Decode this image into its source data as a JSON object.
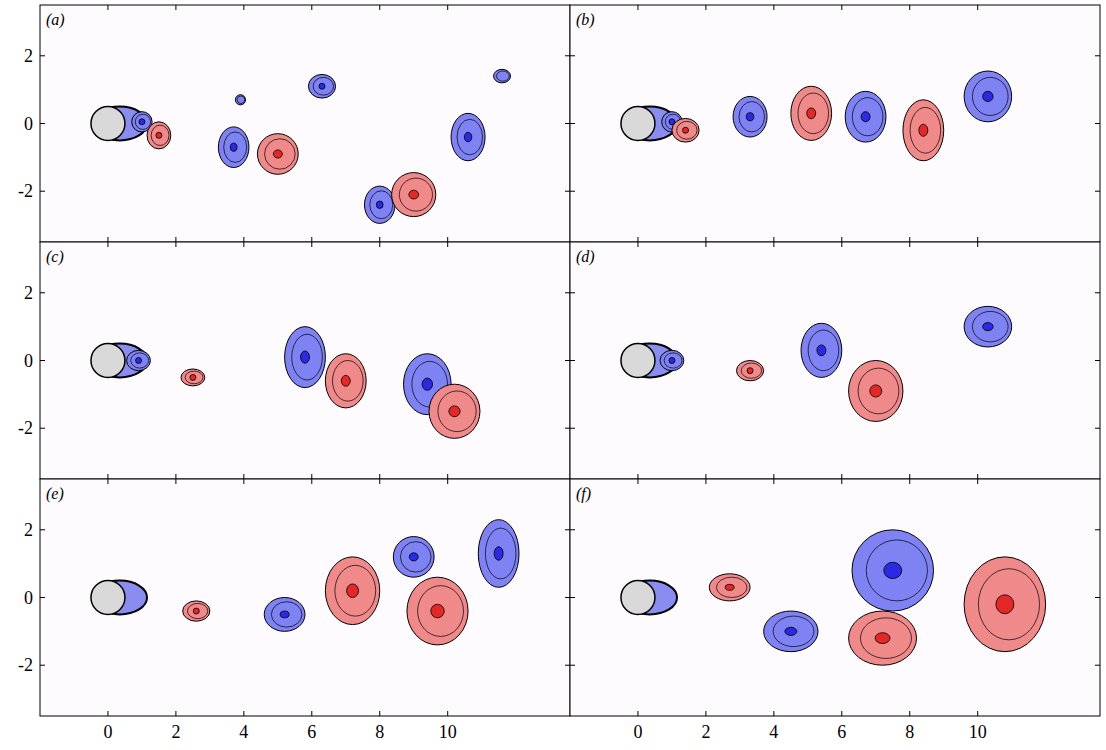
{
  "chart_data": [
    {
      "type": "contour",
      "title": "(a)",
      "xlim": [
        -2,
        13.6
      ],
      "ylim": [
        -3.5,
        3.5
      ],
      "xticks": [
        0,
        2,
        4,
        6,
        8,
        10
      ],
      "yticks": [
        -2,
        0,
        2
      ],
      "tick_labels": "y",
      "vortices": [
        {
          "x": 1.0,
          "y": 0.05,
          "rx": 0.3,
          "ry": 0.3,
          "sign": -1
        },
        {
          "x": 1.5,
          "y": -0.35,
          "rx": 0.35,
          "ry": 0.4,
          "sign": 1
        },
        {
          "x": 3.9,
          "y": 0.7,
          "rx": 0.15,
          "ry": 0.15,
          "sign": -1
        },
        {
          "x": 3.7,
          "y": -0.7,
          "rx": 0.45,
          "ry": 0.6,
          "sign": -1
        },
        {
          "x": 5.0,
          "y": -0.9,
          "rx": 0.6,
          "ry": 0.6,
          "sign": 1
        },
        {
          "x": 6.3,
          "y": 1.1,
          "rx": 0.4,
          "ry": 0.35,
          "sign": -1
        },
        {
          "x": 8.0,
          "y": -2.4,
          "rx": 0.45,
          "ry": 0.55,
          "sign": -1
        },
        {
          "x": 9.0,
          "y": -2.1,
          "rx": 0.65,
          "ry": 0.65,
          "sign": 1
        },
        {
          "x": 10.6,
          "y": -0.4,
          "rx": 0.5,
          "ry": 0.7,
          "sign": -1
        },
        {
          "x": 11.6,
          "y": 1.4,
          "rx": 0.25,
          "ry": 0.2,
          "sign": -1
        }
      ]
    },
    {
      "type": "contour",
      "title": "(b)",
      "xlim": [
        -2,
        13.6
      ],
      "ylim": [
        -3.5,
        3.5
      ],
      "xticks": [
        0,
        2,
        4,
        6,
        8,
        10
      ],
      "yticks": [
        -2,
        0,
        2
      ],
      "tick_labels": false,
      "vortices": [
        {
          "x": 1.0,
          "y": 0.05,
          "rx": 0.3,
          "ry": 0.3,
          "sign": -1
        },
        {
          "x": 1.4,
          "y": -0.2,
          "rx": 0.4,
          "ry": 0.35,
          "sign": 1
        },
        {
          "x": 3.3,
          "y": 0.2,
          "rx": 0.5,
          "ry": 0.6,
          "sign": -1
        },
        {
          "x": 5.1,
          "y": 0.3,
          "rx": 0.6,
          "ry": 0.8,
          "sign": 1
        },
        {
          "x": 6.7,
          "y": 0.2,
          "rx": 0.6,
          "ry": 0.75,
          "sign": -1
        },
        {
          "x": 8.4,
          "y": -0.2,
          "rx": 0.6,
          "ry": 0.9,
          "sign": 1
        },
        {
          "x": 10.3,
          "y": 0.8,
          "rx": 0.7,
          "ry": 0.75,
          "sign": -1
        }
      ]
    },
    {
      "type": "contour",
      "title": "(c)",
      "xlim": [
        -2,
        13.6
      ],
      "ylim": [
        -3.5,
        3.5
      ],
      "xticks": [
        0,
        2,
        4,
        6,
        8,
        10
      ],
      "yticks": [
        -2,
        0,
        2
      ],
      "tick_labels": "y",
      "vortices": [
        {
          "x": 0.9,
          "y": 0.0,
          "rx": 0.35,
          "ry": 0.3,
          "sign": -1
        },
        {
          "x": 2.5,
          "y": -0.5,
          "rx": 0.35,
          "ry": 0.25,
          "sign": 1
        },
        {
          "x": 5.8,
          "y": 0.1,
          "rx": 0.6,
          "ry": 0.9,
          "sign": -1
        },
        {
          "x": 7.0,
          "y": -0.6,
          "rx": 0.6,
          "ry": 0.8,
          "sign": 1
        },
        {
          "x": 9.4,
          "y": -0.7,
          "rx": 0.7,
          "ry": 0.9,
          "sign": -1
        },
        {
          "x": 10.2,
          "y": -1.5,
          "rx": 0.75,
          "ry": 0.8,
          "sign": 1
        }
      ]
    },
    {
      "type": "contour",
      "title": "(d)",
      "xlim": [
        -2,
        13.6
      ],
      "ylim": [
        -3.5,
        3.5
      ],
      "xticks": [
        0,
        2,
        4,
        6,
        8,
        10
      ],
      "yticks": [
        -2,
        0,
        2
      ],
      "tick_labels": false,
      "vortices": [
        {
          "x": 1.0,
          "y": 0.0,
          "rx": 0.35,
          "ry": 0.3,
          "sign": -1
        },
        {
          "x": 3.3,
          "y": -0.3,
          "rx": 0.4,
          "ry": 0.3,
          "sign": 1
        },
        {
          "x": 5.4,
          "y": 0.3,
          "rx": 0.6,
          "ry": 0.8,
          "sign": -1
        },
        {
          "x": 7.0,
          "y": -0.9,
          "rx": 0.8,
          "ry": 0.9,
          "sign": 1
        },
        {
          "x": 10.3,
          "y": 1.0,
          "rx": 0.7,
          "ry": 0.6,
          "sign": -1
        }
      ]
    },
    {
      "type": "contour",
      "title": "(e)",
      "xlim": [
        -2,
        13.6
      ],
      "ylim": [
        -3.5,
        3.5
      ],
      "xticks": [
        0,
        2,
        4,
        6,
        8,
        10
      ],
      "yticks": [
        -2,
        0,
        2
      ],
      "tick_labels": true,
      "vortices": [
        {
          "x": 2.6,
          "y": -0.4,
          "rx": 0.4,
          "ry": 0.3,
          "sign": 1
        },
        {
          "x": 5.2,
          "y": -0.5,
          "rx": 0.6,
          "ry": 0.5,
          "sign": -1
        },
        {
          "x": 7.2,
          "y": 0.2,
          "rx": 0.8,
          "ry": 1.0,
          "sign": 1
        },
        {
          "x": 9.0,
          "y": 1.2,
          "rx": 0.6,
          "ry": 0.6,
          "sign": -1
        },
        {
          "x": 9.7,
          "y": -0.4,
          "rx": 0.9,
          "ry": 1.0,
          "sign": 1
        },
        {
          "x": 11.5,
          "y": 1.3,
          "rx": 0.6,
          "ry": 1.0,
          "sign": -1
        }
      ]
    },
    {
      "type": "contour",
      "title": "(f)",
      "xlim": [
        -2,
        13.6
      ],
      "ylim": [
        -3.5,
        3.5
      ],
      "xticks": [
        0,
        2,
        4,
        6,
        8,
        10
      ],
      "yticks": [
        -2,
        0,
        2
      ],
      "tick_labels": "x",
      "vortices": [
        {
          "x": 2.7,
          "y": 0.3,
          "rx": 0.6,
          "ry": 0.4,
          "sign": 1
        },
        {
          "x": 4.5,
          "y": -1.0,
          "rx": 0.8,
          "ry": 0.6,
          "sign": -1
        },
        {
          "x": 7.5,
          "y": 0.8,
          "rx": 1.2,
          "ry": 1.2,
          "sign": -1
        },
        {
          "x": 7.2,
          "y": -1.2,
          "rx": 1.0,
          "ry": 0.8,
          "sign": 1
        },
        {
          "x": 10.8,
          "y": -0.2,
          "rx": 1.2,
          "ry": 1.4,
          "sign": 1
        }
      ]
    }
  ]
}
